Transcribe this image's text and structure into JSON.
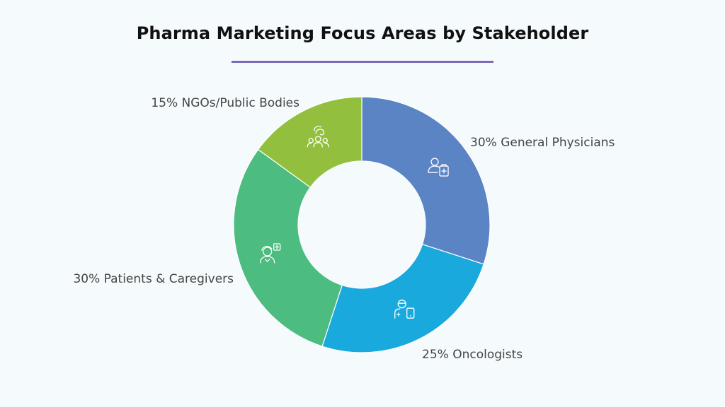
{
  "title": "Pharma Marketing Focus Areas by Stakeholder",
  "chart_data": {
    "type": "pie",
    "donut": true,
    "title": "Pharma Marketing Focus Areas by Stakeholder",
    "slices": [
      {
        "label": "30% General Physicians",
        "category": "General Physicians",
        "value": 30,
        "color": "#5b84c4",
        "icon": "doctor-clipboard-icon"
      },
      {
        "label": "25% Oncologists",
        "category": "Oncologists",
        "value": 25,
        "color": "#1aa9dc",
        "icon": "oncologist-tablet-icon"
      },
      {
        "label": "30% Patients & Caregivers",
        "category": "Patients & Caregivers",
        "value": 30,
        "color": "#4cbc80",
        "icon": "patient-plus-icon"
      },
      {
        "label": "15% NGOs/Public Bodies",
        "category": "NGOs/Public Bodies",
        "value": 15,
        "color": "#92c03e",
        "icon": "group-people-icon"
      }
    ]
  }
}
